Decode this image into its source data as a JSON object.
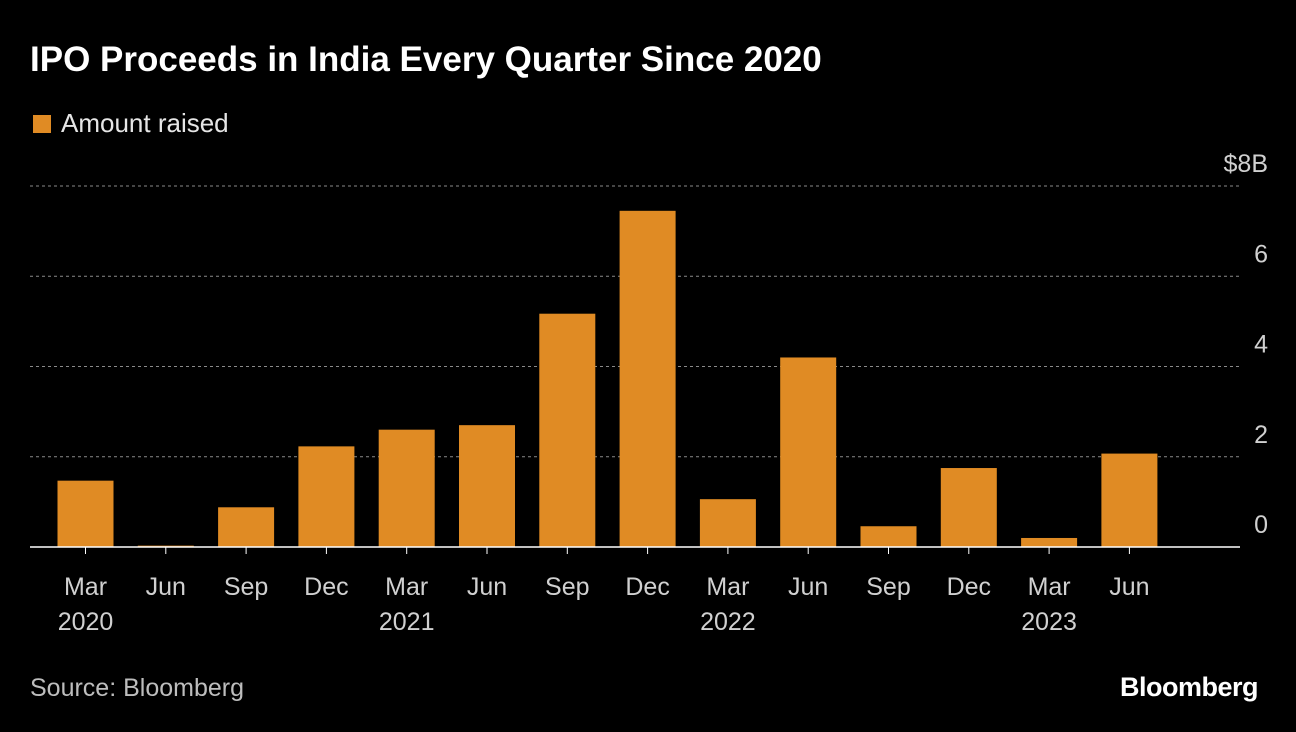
{
  "title": "IPO Proceeds in India Every Quarter Since 2020",
  "legend": {
    "label": "Amount raised",
    "color": "#e08b24"
  },
  "source": "Source: Bloomberg",
  "brand": "Bloomberg",
  "chart_data": {
    "type": "bar",
    "title": "IPO Proceeds in India Every Quarter Since 2020",
    "xlabel": "",
    "ylabel": "",
    "ylim": [
      0,
      8
    ],
    "y_ticks": [
      {
        "value": 8,
        "label": "$8B"
      },
      {
        "value": 6,
        "label": "6"
      },
      {
        "value": 4,
        "label": "4"
      },
      {
        "value": 2,
        "label": "2"
      },
      {
        "value": 0,
        "label": "0"
      }
    ],
    "categories": [
      "Mar",
      "Jun",
      "Sep",
      "Dec",
      "Mar",
      "Jun",
      "Sep",
      "Dec",
      "Mar",
      "Jun",
      "Sep",
      "Dec",
      "Mar",
      "Jun"
    ],
    "years": [
      "2020",
      "",
      "",
      "",
      "2021",
      "",
      "",
      "",
      "2022",
      "",
      "",
      "",
      "2023",
      ""
    ],
    "series": [
      {
        "name": "Amount raised",
        "color": "#e08b24",
        "values": [
          1.47,
          0.03,
          0.88,
          2.23,
          2.6,
          2.7,
          5.17,
          7.45,
          1.06,
          4.2,
          0.46,
          1.75,
          0.2,
          2.07
        ]
      }
    ],
    "grid": true,
    "legend_position": "top-left"
  }
}
